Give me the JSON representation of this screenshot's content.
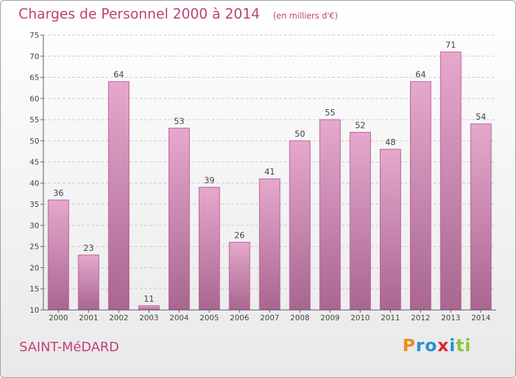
{
  "title": "Charges de Personnel 2000 à 2014",
  "unit": "(en milliers d'€)",
  "commune": "SAINT-MéDARD",
  "brand": {
    "letters": [
      "P",
      "r",
      "o",
      "x",
      "i",
      "t",
      "i"
    ],
    "colors": [
      "#f08a1c",
      "#2a8ed8",
      "#2a8ed8",
      "#d8282e",
      "#2a8ed8",
      "#8cc63e",
      "#8cc63e"
    ]
  },
  "colors": {
    "bar_top": "#e6a8cd",
    "bar_bottom": "#a86690",
    "bar_stroke": "#b85f94",
    "accent": "#c0407a",
    "axis": "#555555"
  },
  "chart_data": {
    "type": "bar",
    "categories": [
      "2000",
      "2001",
      "2002",
      "2003",
      "2004",
      "2005",
      "2006",
      "2007",
      "2008",
      "2009",
      "2010",
      "2011",
      "2012",
      "2013",
      "2014"
    ],
    "values": [
      36,
      23,
      64,
      11,
      53,
      39,
      26,
      41,
      50,
      55,
      52,
      48,
      64,
      71,
      54
    ],
    "labels": [
      "36",
      "23",
      "64",
      "11",
      "53",
      "39",
      "26",
      "41",
      "50",
      "55",
      "52",
      "48",
      "64",
      "71",
      "54"
    ],
    "yticks": [
      "10",
      "15",
      "20",
      "25",
      "30",
      "35",
      "40",
      "45",
      "50",
      "55",
      "60",
      "65",
      "70",
      "75"
    ],
    "ylim": [
      10,
      75
    ],
    "grid": true,
    "title": "Charges de Personnel 2000 à 2014",
    "xlabel": "",
    "ylabel": ""
  }
}
